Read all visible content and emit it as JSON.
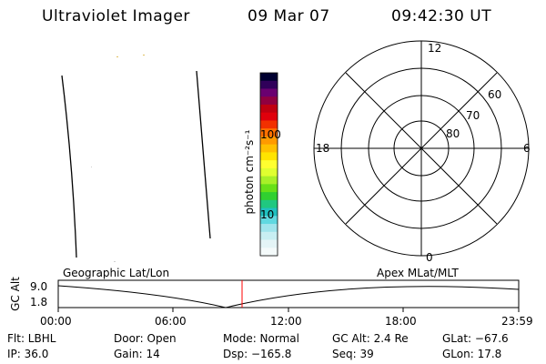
{
  "header": {
    "instrument": "Ultraviolet Imager",
    "date": "09 Mar 07",
    "time": "09:42:30 UT"
  },
  "colorbar": {
    "unit_label": "photon cm⁻²s⁻¹",
    "ticks": [
      "100",
      "10"
    ],
    "colors": [
      "#000030",
      "#30005a",
      "#6a0070",
      "#900040",
      "#c00010",
      "#e0000c",
      "#f23000",
      "#ff7000",
      "#ff9a00",
      "#ffc000",
      "#ffe400",
      "#ffff30",
      "#e0ff30",
      "#a8f028",
      "#68e018",
      "#30d030",
      "#20c880",
      "#20c0c0",
      "#60d8e0",
      "#a0e4ec",
      "#c8eef2",
      "#e4f4f6",
      "#f4fafa"
    ]
  },
  "polar": {
    "mlt_labels": {
      "top": "12",
      "right": "6",
      "bottom": "0",
      "left": "18"
    },
    "lat_labels": [
      "60",
      "70",
      "80"
    ]
  },
  "timeline": {
    "left_title": "Geographic Lat/Lon",
    "right_title": "Apex MLat/MLT",
    "axis_label": "GC Alt",
    "y_ticks": [
      "9.0",
      "1.8"
    ],
    "x_ticks": [
      "00:00",
      "06:00",
      "12:00",
      "18:00",
      "23:59"
    ],
    "current_marker_color": "#ff0000"
  },
  "info": {
    "flt": "Flt: LBHL",
    "ip": "IP: 36.0",
    "door": "Door: Open",
    "gain": "Gain: 14",
    "mode": "Mode: Normal",
    "dsp": "Dsp: −165.8",
    "gcalt": "GC Alt: 2.4 Re",
    "seq": "Seq: 39",
    "glat": "GLat: −67.6",
    "glon": "GLon:  17.8"
  }
}
